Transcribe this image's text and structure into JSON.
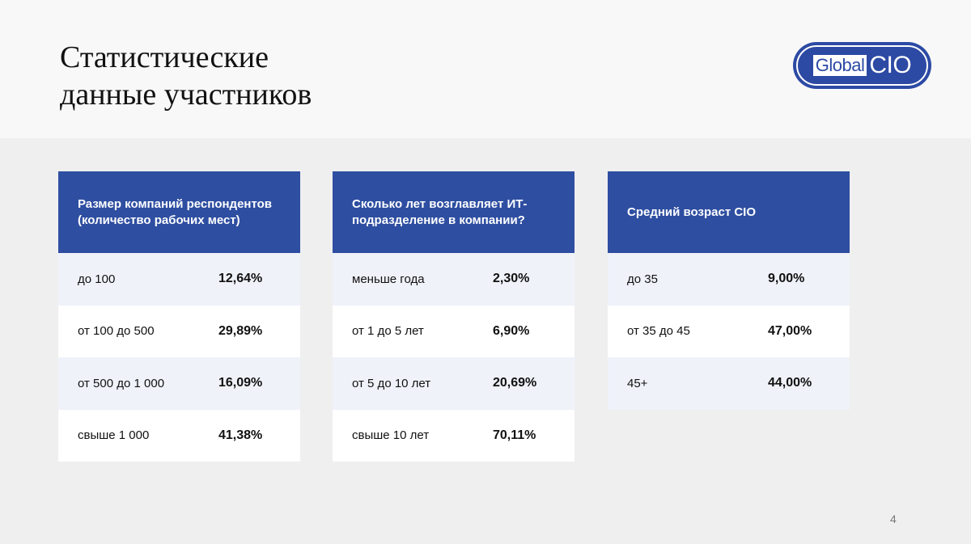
{
  "title": "Статистические\nданные участников",
  "logo": {
    "global": "Global",
    "cio": "CIO"
  },
  "tables": [
    {
      "header": "Размер компаний респондентов (количество рабочих мест)",
      "rows": [
        {
          "label": "до 100",
          "value": "12,64%"
        },
        {
          "label": "от 100 до 500",
          "value": "29,89%"
        },
        {
          "label": "от 500 до 1 000",
          "value": "16,09%"
        },
        {
          "label": "свыше 1 000",
          "value": "41,38%"
        }
      ]
    },
    {
      "header": "Сколько лет возглавляет ИТ-подразделение в компании?",
      "rows": [
        {
          "label": "меньше года",
          "value": "2,30%"
        },
        {
          "label": "от 1 до 5 лет",
          "value": "6,90%"
        },
        {
          "label": "от 5 до 10 лет",
          "value": "20,69%"
        },
        {
          "label": "свыше 10 лет",
          "value": "70,11%"
        }
      ]
    },
    {
      "header": "Средний возраст CIO",
      "rows": [
        {
          "label": "до 35",
          "value": "9,00%"
        },
        {
          "label": "от 35 до 45",
          "value": "47,00%"
        },
        {
          "label": "45+",
          "value": "44,00%"
        }
      ]
    }
  ],
  "page_number": "4",
  "colors": {
    "header_blue": "#2e4ea1",
    "logo_blue": "#2c4aa4",
    "row_tint": "#eff2f9"
  }
}
